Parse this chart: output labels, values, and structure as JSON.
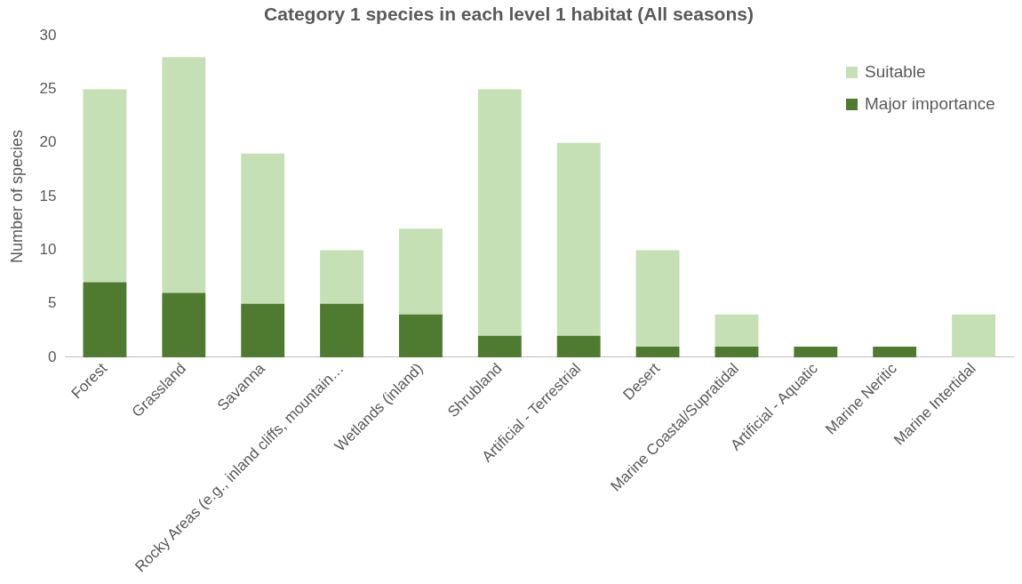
{
  "chart_data": {
    "type": "bar",
    "title": "Category 1 species in each level 1 habitat (All seasons)",
    "ylabel": "Number of species",
    "categories": [
      "Forest",
      "Grassland",
      "Savanna",
      "Rocky Areas (e.g., inland cliffs, mountain…",
      "Wetlands (inland)",
      "Shrubland",
      "Artificial - Terrestrial",
      "Desert",
      "Marine Coastal/Supratidal",
      "Artificial - Aquatic",
      "Marine Neritic",
      "Marine Intertidal"
    ],
    "stacked": true,
    "series": [
      {
        "name": "Major importance",
        "color": "#4e7b2f",
        "values": [
          7,
          6,
          5,
          5,
          4,
          2,
          2,
          1,
          1,
          1,
          1,
          0
        ]
      },
      {
        "name": "Suitable",
        "color": "#c5e0b4",
        "values": [
          18,
          22,
          14,
          5,
          8,
          23,
          18,
          9,
          3,
          0,
          0,
          4
        ]
      }
    ],
    "ylim": [
      0,
      30
    ],
    "yticks": [
      0,
      5,
      10,
      15,
      20,
      25,
      30
    ],
    "grid": false,
    "legend": "top right"
  }
}
